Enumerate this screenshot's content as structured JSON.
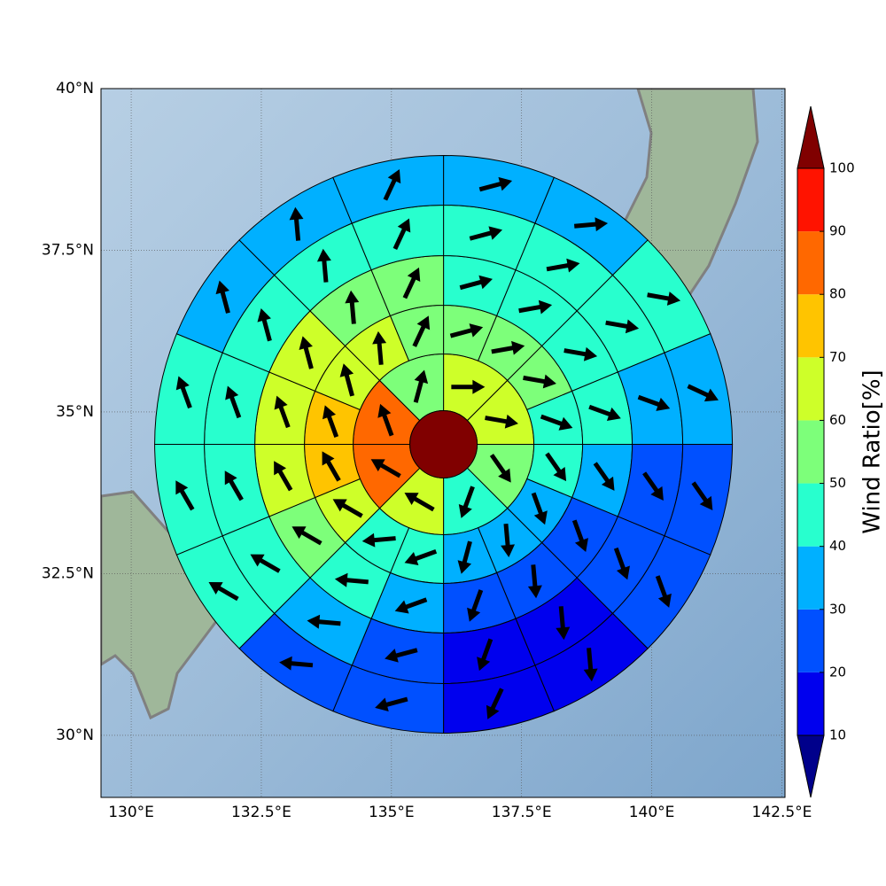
{
  "chart_data": {
    "type": "polar-map",
    "xlim": [
      129.42,
      142.56
    ],
    "ylim": [
      29.04,
      40
    ],
    "xticks": [
      {
        "value": 130,
        "label": "130°E"
      },
      {
        "value": 132.5,
        "label": "132.5°E"
      },
      {
        "value": 135,
        "label": "135°E"
      },
      {
        "value": 137.5,
        "label": "137.5°E"
      },
      {
        "value": 140,
        "label": "140°E"
      },
      {
        "value": 142.5,
        "label": "142.5°E"
      }
    ],
    "yticks": [
      {
        "value": 30,
        "label": "30°N"
      },
      {
        "value": 32.5,
        "label": "32.5°N"
      },
      {
        "value": 35,
        "label": "35°N"
      },
      {
        "value": 37.5,
        "label": "37.5°N"
      },
      {
        "value": 40,
        "label": "40°N"
      }
    ],
    "grid": true,
    "center": [
      136.0,
      34.5
    ],
    "center_value": 100,
    "rings": [
      {
        "values": [
          65,
          65,
          55,
          45,
          65,
          85,
          85,
          55
        ],
        "directions": [
          90,
          100,
          145,
          200,
          300,
          300,
          340,
          15
        ]
      },
      {
        "values": [
          55,
          55,
          55,
          45,
          45,
          35,
          35,
          35,
          45,
          45,
          65,
          75,
          75,
          65,
          65,
          55
        ],
        "directions": [
          75,
          80,
          100,
          110,
          145,
          160,
          175,
          195,
          250,
          265,
          300,
          330,
          340,
          345,
          355,
          25
        ]
      },
      {
        "values": [
          45,
          45,
          45,
          45,
          35,
          25,
          25,
          25,
          35,
          45,
          55,
          65,
          65,
          65,
          55,
          55
        ],
        "directions": [
          75,
          80,
          100,
          110,
          145,
          160,
          175,
          200,
          250,
          275,
          300,
          330,
          340,
          345,
          355,
          25
        ]
      },
      {
        "values": [
          45,
          45,
          45,
          35,
          25,
          25,
          15,
          15,
          25,
          35,
          45,
          45,
          45,
          45,
          45,
          45
        ],
        "directions": [
          75,
          80,
          100,
          110,
          145,
          160,
          175,
          200,
          255,
          275,
          300,
          330,
          340,
          345,
          355,
          25
        ]
      },
      {
        "values": [
          35,
          35,
          45,
          35,
          25,
          25,
          15,
          15,
          25,
          25,
          45,
          45,
          45,
          35,
          35,
          35
        ],
        "directions": [
          75,
          85,
          100,
          115,
          145,
          160,
          175,
          205,
          255,
          275,
          300,
          330,
          340,
          345,
          355,
          25
        ]
      }
    ],
    "colorbar": {
      "label": "Wind Ratio[%]",
      "ticks": [
        10,
        20,
        30,
        40,
        50,
        60,
        70,
        80,
        90,
        100
      ],
      "colors": [
        "#0000ee",
        "#0050ff",
        "#00b0ff",
        "#28ffce",
        "#7dff7a",
        "#ceff29",
        "#ffc400",
        "#ff6800",
        "#ff1300"
      ],
      "under_color": "#00008b",
      "over_color": "#800000"
    }
  }
}
